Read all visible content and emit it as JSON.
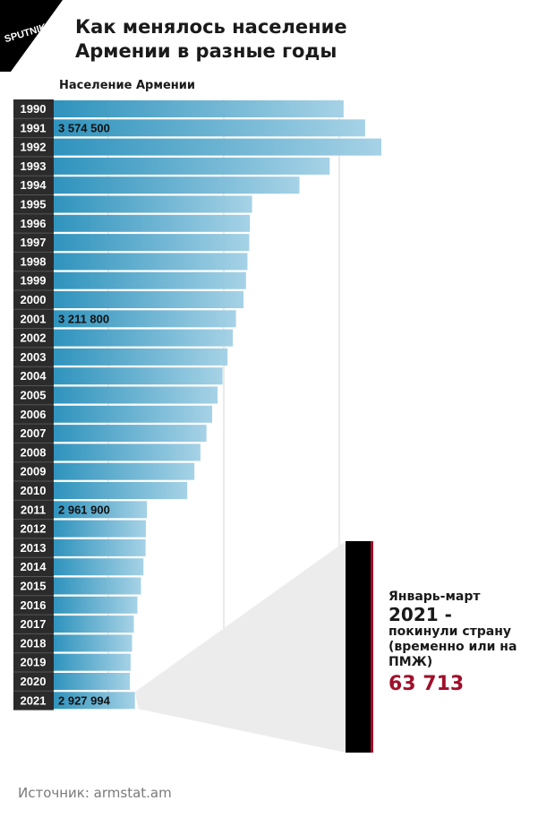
{
  "header": {
    "logo_text": "SPUTNIK",
    "title_line1": "Как менялось население",
    "title_line2": "Армении в разные годы",
    "subtitle": "Население Армении"
  },
  "colors": {
    "bar_start": "#2f93bd",
    "bar_end": "#a6d2e6",
    "year_column": "#2b2b2b",
    "accent": "#a0102a",
    "callout_bar": "#000000"
  },
  "chart_data": {
    "type": "bar",
    "orientation": "horizontal",
    "title": "Население Армении",
    "categories": [
      "1990",
      "1991",
      "1992",
      "1993",
      "1994",
      "1995",
      "1996",
      "1997",
      "1998",
      "1999",
      "2000",
      "2001",
      "2002",
      "2003",
      "2004",
      "2005",
      "2006",
      "2007",
      "2008",
      "2009",
      "2010",
      "2011",
      "2012",
      "2013",
      "2014",
      "2015",
      "2016",
      "2017",
      "2018",
      "2019",
      "2020",
      "2021"
    ],
    "values": [
      3514000,
      3574500,
      3620000,
      3475000,
      3390000,
      3257000,
      3251000,
      3249000,
      3244000,
      3240000,
      3233000,
      3211800,
      3203000,
      3188000,
      3174000,
      3160000,
      3145000,
      3129000,
      3112000,
      3095000,
      3075000,
      2961900,
      2959000,
      2958000,
      2952000,
      2945000,
      2935000,
      2925000,
      2920000,
      2916000,
      2914000,
      2927994
    ],
    "data_labels": [
      {
        "category": "1991",
        "text": "3 574 500"
      },
      {
        "category": "2001",
        "text": "3 211 800"
      },
      {
        "category": "2011",
        "text": "2 961 900"
      },
      {
        "category": "2021",
        "text": "2 927 994"
      }
    ],
    "grid": true
  },
  "callout": {
    "line1": "Январь-март",
    "year": "2021 -",
    "line3": "покинули страну (временно или на ПМЖ)",
    "value_text": "63 713",
    "value": 63713
  },
  "footer": {
    "source": "Источник: armstat.am"
  }
}
